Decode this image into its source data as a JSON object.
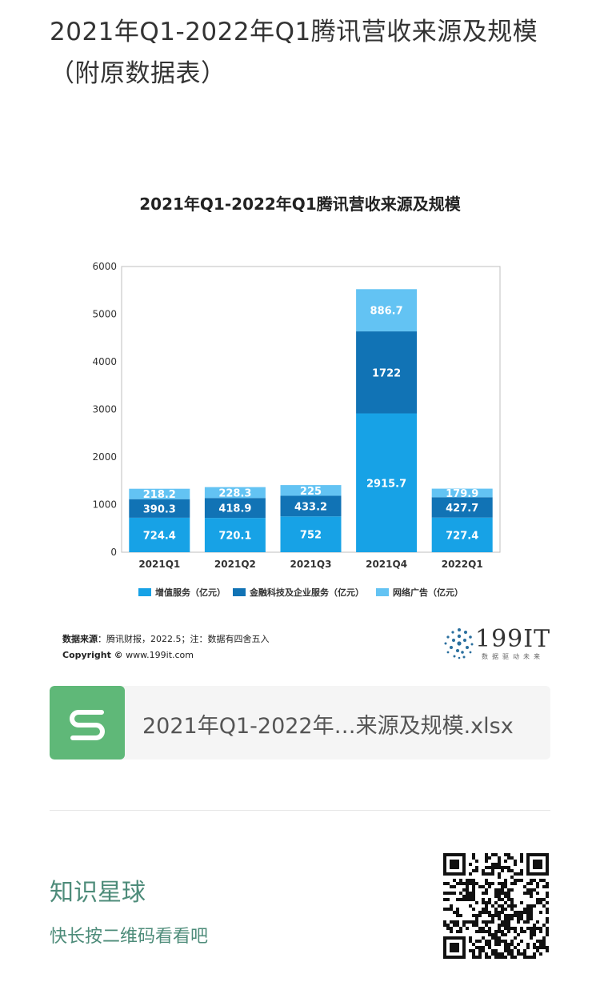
{
  "page": {
    "title": "2021年Q1-2022年Q1腾讯营收来源及规模（附原数据表）"
  },
  "chart_data": {
    "type": "bar",
    "stacked": true,
    "title": "2021年Q1-2022年Q1腾讯营收来源及规模",
    "xlabel": "",
    "ylabel": "",
    "categories": [
      "2021Q1",
      "2021Q2",
      "2021Q3",
      "2021Q4",
      "2022Q1"
    ],
    "ylim": [
      0,
      6000
    ],
    "yticks": [
      0,
      1000,
      2000,
      3000,
      4000,
      5000,
      6000
    ],
    "grid": false,
    "legend": "bottom",
    "series": [
      {
        "name": "增值服务（亿元）",
        "values": [
          724.4,
          720.1,
          752,
          2915.7,
          727.4
        ],
        "labels": [
          "724.4",
          "720.1",
          "752",
          "2915.7",
          "727.4"
        ],
        "color": "#17a2e6"
      },
      {
        "name": "金融科技及企业服务（亿元）",
        "values": [
          390.3,
          418.9,
          433.2,
          1722,
          427.7
        ],
        "labels": [
          "390.3",
          "418.9",
          "433.2",
          "1722",
          "427.7"
        ],
        "color": "#1173b5"
      },
      {
        "name": "网络广告（亿元）",
        "values": [
          218.2,
          228.3,
          225,
          886.7,
          179.9
        ],
        "labels": [
          "218.2",
          "228.3",
          "225",
          "886.7",
          "179.9"
        ],
        "color": "#63c3f3"
      }
    ]
  },
  "source": {
    "label": "数据来源",
    "text": "：腾讯财报，2022.5；注：数据有四舍五入",
    "copyright": "Copyright ©",
    "url": "www.199it.com"
  },
  "logo": {
    "text": "199IT",
    "tagline": "数据驱动未来"
  },
  "attachment": {
    "file_name": "2021年Q1-2022年…来源及规模.xlsx",
    "icon": "spreadsheet-s-icon",
    "icon_color": "#5fb878"
  },
  "knowledge_planet": {
    "title": "知识星球",
    "subtitle": "快长按二维码看看吧",
    "qr": "qr-code-icon"
  }
}
